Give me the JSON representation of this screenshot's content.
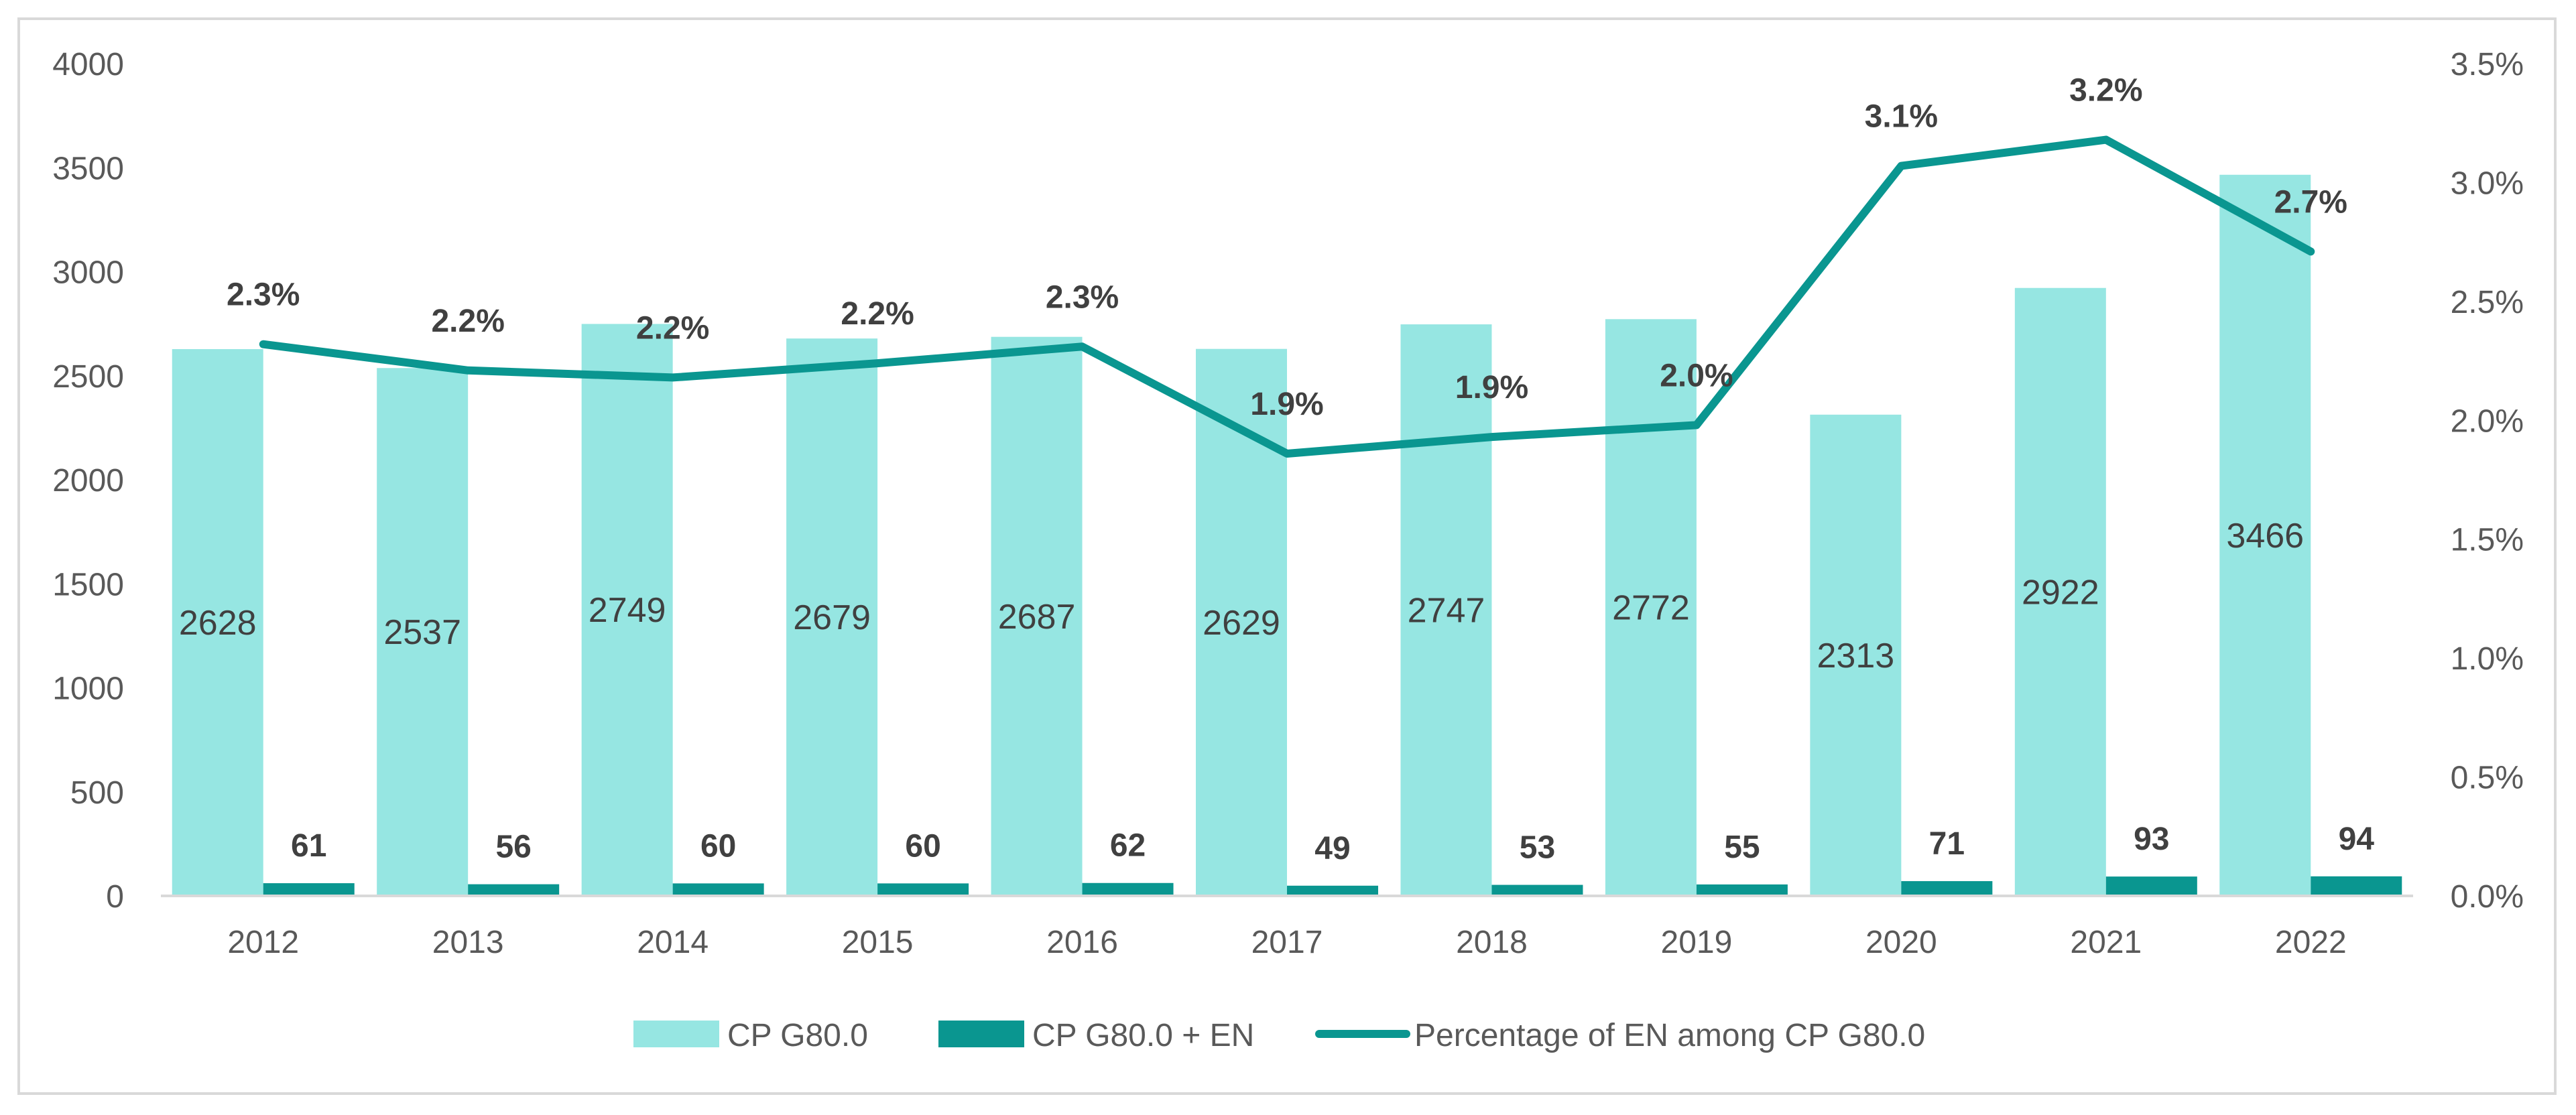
{
  "chart_data": {
    "type": "bar",
    "title": "",
    "categories": [
      "2012",
      "2013",
      "2014",
      "2015",
      "2016",
      "2017",
      "2018",
      "2019",
      "2020",
      "2021",
      "2022"
    ],
    "series": [
      {
        "name": "CP G80.0",
        "kind": "bar",
        "axis": "left",
        "color": "#96e6e2",
        "values": [
          2628,
          2537,
          2749,
          2679,
          2687,
          2629,
          2747,
          2772,
          2313,
          2922,
          3466
        ],
        "labels": [
          "2628",
          "2537",
          "2749",
          "2679",
          "2687",
          "2629",
          "2747",
          "2772",
          "2313",
          "2922",
          "3466"
        ]
      },
      {
        "name": "CP G80.0 + EN",
        "kind": "bar",
        "axis": "left",
        "color": "#0a9690",
        "values": [
          61,
          56,
          60,
          60,
          62,
          49,
          53,
          55,
          71,
          93,
          94
        ],
        "labels": [
          "61",
          "56",
          "60",
          "60",
          "62",
          "49",
          "53",
          "55",
          "71",
          "93",
          "94"
        ]
      },
      {
        "name": "Percentage of EN among CP G80.0",
        "kind": "line",
        "axis": "right",
        "color": "#0a9690",
        "values": [
          2.32,
          2.21,
          2.18,
          2.24,
          2.31,
          1.86,
          1.93,
          1.98,
          3.07,
          3.18,
          2.71
        ],
        "labels": [
          "2.3%",
          "2.2%",
          "2.2%",
          "2.2%",
          "2.3%",
          "1.9%",
          "1.9%",
          "2.0%",
          "3.1%",
          "3.2%",
          "2.7%"
        ]
      }
    ],
    "y_left": {
      "min": 0,
      "max": 4000,
      "ticks": [
        "0",
        "500",
        "1000",
        "1500",
        "2000",
        "2500",
        "3000",
        "3500",
        "4000"
      ]
    },
    "y_right": {
      "min": 0,
      "max": 3.5,
      "ticks": [
        "0.0%",
        "0.5%",
        "1.0%",
        "1.5%",
        "2.0%",
        "2.5%",
        "3.0%",
        "3.5%"
      ]
    },
    "grid": false,
    "legend": "bottom"
  }
}
